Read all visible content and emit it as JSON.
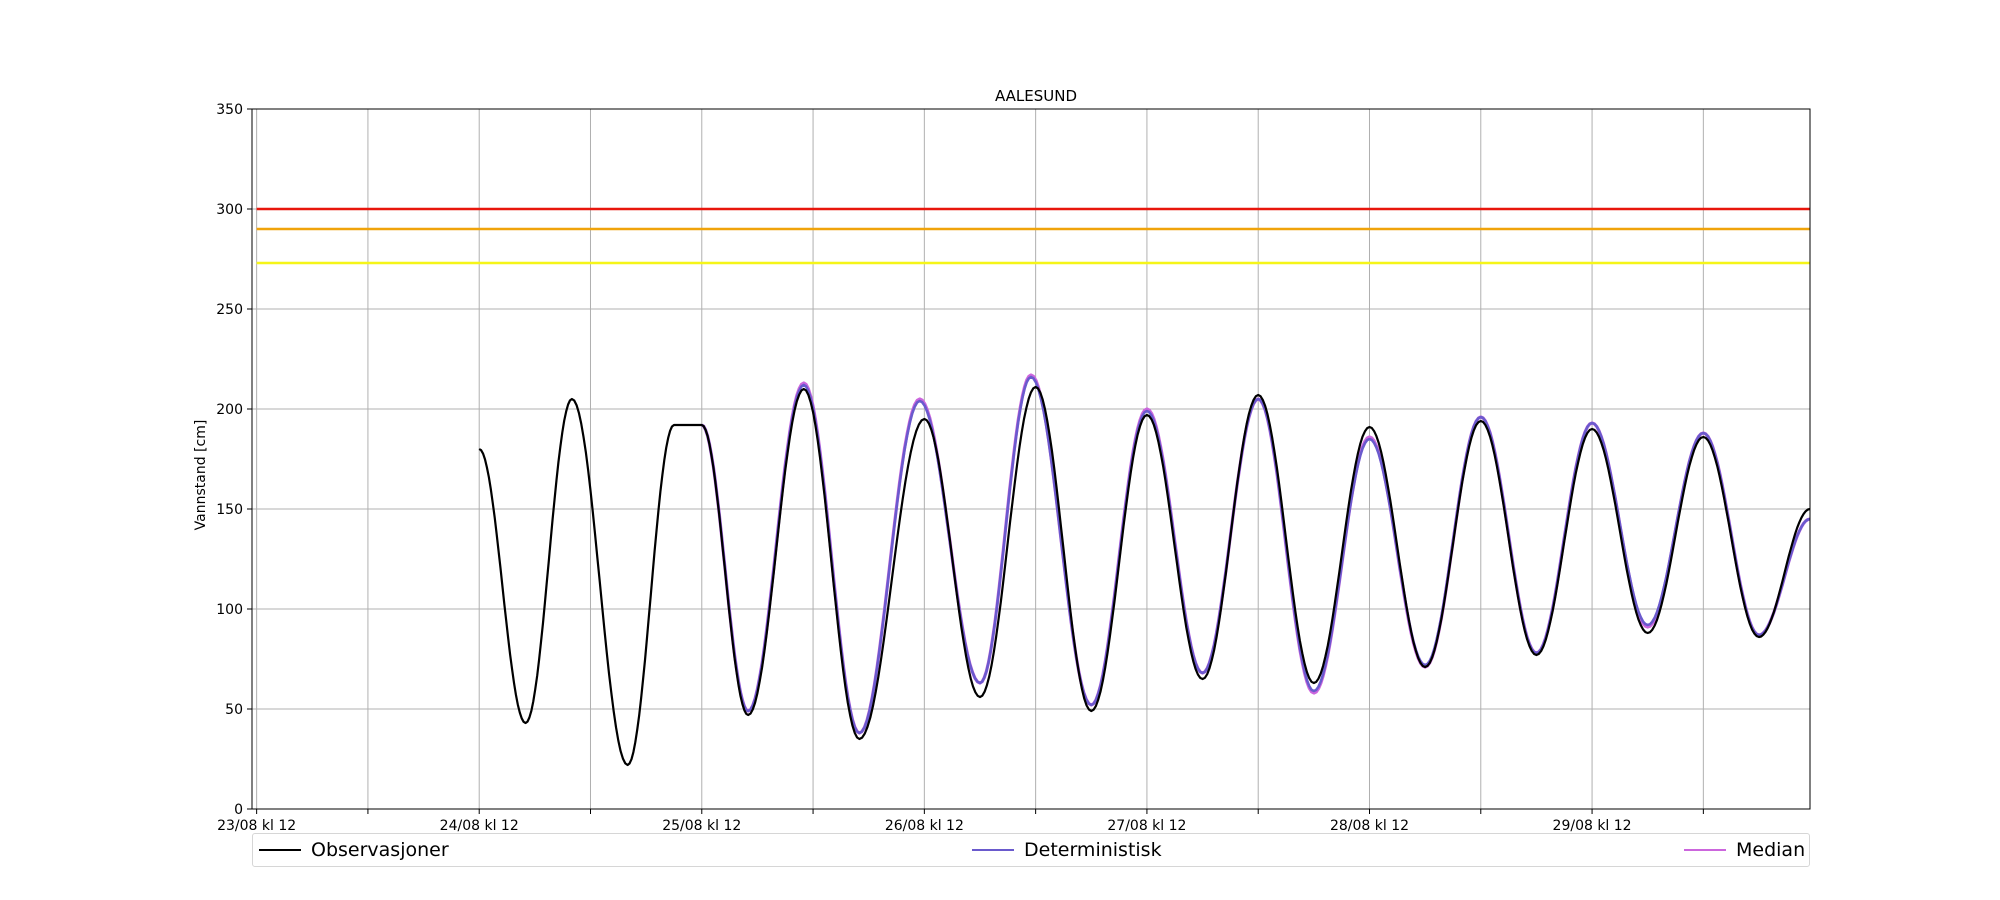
{
  "chart_data": {
    "type": "line",
    "title": "AALESUND",
    "xlabel": "",
    "ylabel": "Vannstand [cm]",
    "ylim": [
      0,
      350
    ],
    "x_unit": "hours since 23/08 kl 12",
    "xlim": [
      -0.5,
      167.5
    ],
    "yticks": [
      0,
      50,
      100,
      150,
      200,
      250,
      300,
      350
    ],
    "xticks": [
      {
        "x": 0,
        "label": "23/08 kl 12"
      },
      {
        "x": 12,
        "label": ""
      },
      {
        "x": 24,
        "label": "24/08 kl 12"
      },
      {
        "x": 36,
        "label": ""
      },
      {
        "x": 48,
        "label": "25/08 kl 12"
      },
      {
        "x": 60,
        "label": ""
      },
      {
        "x": 72,
        "label": "26/08 kl 12"
      },
      {
        "x": 84,
        "label": ""
      },
      {
        "x": 96,
        "label": "27/08 kl 12"
      },
      {
        "x": 108,
        "label": ""
      },
      {
        "x": 120,
        "label": "28/08 kl 12"
      },
      {
        "x": 132,
        "label": ""
      },
      {
        "x": 144,
        "label": "29/08 kl 12"
      },
      {
        "x": 156,
        "label": ""
      }
    ],
    "grid": true,
    "legend_position": "bottom",
    "threshold_lines": [
      {
        "value": 300,
        "color": "#e8160c"
      },
      {
        "value": 290,
        "color": "#f0a30a"
      },
      {
        "value": 273,
        "color": "#f5f518"
      }
    ],
    "series": [
      {
        "name": "Observasjoner",
        "color": "#000000",
        "points": [
          [
            24,
            180
          ],
          [
            29,
            43
          ],
          [
            34,
            205
          ],
          [
            40,
            22
          ],
          [
            45,
            192
          ],
          [
            48,
            192
          ],
          [
            53,
            47
          ],
          [
            59,
            210
          ],
          [
            65,
            35
          ],
          [
            72,
            195
          ],
          [
            78,
            56
          ],
          [
            84,
            211
          ],
          [
            90,
            49
          ],
          [
            96,
            197
          ],
          [
            102,
            65
          ],
          [
            108,
            207
          ],
          [
            114,
            63
          ],
          [
            120,
            191
          ],
          [
            126,
            71
          ],
          [
            132,
            194
          ],
          [
            138,
            77
          ],
          [
            144,
            190
          ],
          [
            150,
            88
          ],
          [
            156,
            186
          ],
          [
            162,
            86
          ],
          [
            167.5,
            150
          ]
        ]
      },
      {
        "name": "Deterministisk",
        "color": "#6a5acd",
        "points": [
          [
            48,
            192
          ],
          [
            53,
            49
          ],
          [
            59,
            212
          ],
          [
            65,
            38
          ],
          [
            71.5,
            204
          ],
          [
            78,
            63
          ],
          [
            83.5,
            216
          ],
          [
            90,
            52
          ],
          [
            96,
            199
          ],
          [
            102,
            68
          ],
          [
            108,
            205
          ],
          [
            114,
            59
          ],
          [
            120,
            185
          ],
          [
            126,
            72
          ],
          [
            132,
            196
          ],
          [
            138,
            78
          ],
          [
            144,
            193
          ],
          [
            150,
            92
          ],
          [
            156,
            188
          ],
          [
            162,
            87
          ],
          [
            167.5,
            145
          ]
        ]
      },
      {
        "name": "Median",
        "color": "#cc66dd",
        "points": [
          [
            48,
            192
          ],
          [
            53,
            49
          ],
          [
            59,
            213
          ],
          [
            65,
            38
          ],
          [
            71.5,
            205
          ],
          [
            78,
            63
          ],
          [
            83.5,
            217
          ],
          [
            90,
            52
          ],
          [
            96,
            200
          ],
          [
            102,
            68
          ],
          [
            108,
            205
          ],
          [
            114,
            58
          ],
          [
            120,
            186
          ],
          [
            126,
            71
          ],
          [
            132,
            196
          ],
          [
            138,
            78
          ],
          [
            144,
            193
          ],
          [
            150,
            91
          ],
          [
            156,
            188
          ],
          [
            162,
            87
          ],
          [
            167.5,
            145
          ]
        ]
      }
    ]
  }
}
